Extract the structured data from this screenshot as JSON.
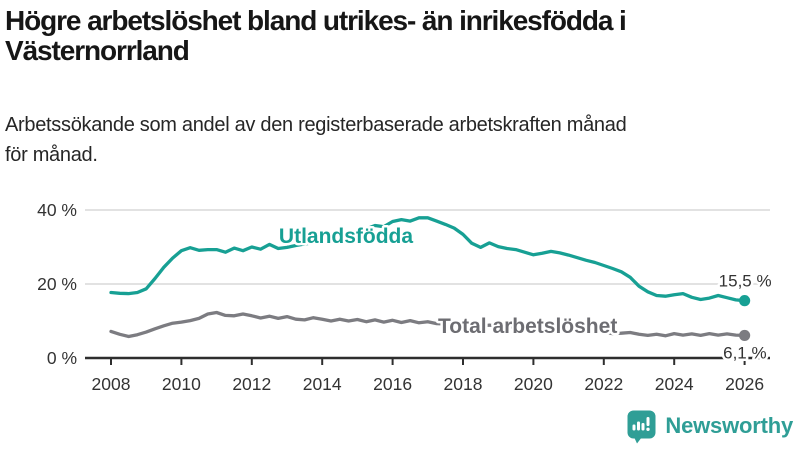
{
  "header": {
    "title": "Högre arbetslöshet bland utrikes- än inrikesfödda i Västernorrland",
    "title_line1": "Högre arbetslöshet bland utrikes- än inrikesfödda i",
    "title_line2": "Västernorrland",
    "subtitle": "Arbetssökande som andel av den registerbaserade arbetskraften månad för månad.",
    "subtitle_line1": "Arbetssökande som andel av den registerbaserade arbetskraften månad",
    "subtitle_line2": "för månad."
  },
  "chart_data": {
    "type": "line",
    "title": "Högre arbetslöshet bland utrikes- än inrikesfödda i Västernorrland",
    "subtitle": "Arbetssökande som andel av den registerbaserade arbetskraften månad för månad.",
    "unit": "%",
    "grid": "horizontal-only",
    "legend": "inline-series-labels",
    "x_axis": {
      "ticks": [
        {
          "value": 2008,
          "label": "2008"
        },
        {
          "value": 2010,
          "label": "2010"
        },
        {
          "value": 2012,
          "label": "2012"
        },
        {
          "value": 2014,
          "label": "2014"
        },
        {
          "value": 2016,
          "label": "2016"
        },
        {
          "value": 2018,
          "label": "2018"
        },
        {
          "value": 2020,
          "label": "2020"
        },
        {
          "value": 2022,
          "label": "2022"
        },
        {
          "value": 2024,
          "label": "2024"
        },
        {
          "value": 2026,
          "label": "2026"
        }
      ],
      "range": [
        2007.3,
        2026.7
      ]
    },
    "y_axis": {
      "ticks": [
        {
          "value": 0,
          "label": "0 %",
          "grid": false
        },
        {
          "value": 20,
          "label": "20 %",
          "grid": true
        },
        {
          "value": 40,
          "label": "40 %",
          "grid": true
        }
      ],
      "range": [
        0,
        43
      ]
    },
    "x_start": 2008.0,
    "x_step": 0.25,
    "series": [
      {
        "name": "Utlandsfödda",
        "color": "#17a094",
        "label_color": "#17a094",
        "end_label": "15,5 %",
        "last_value": 15.5,
        "values": [
          17.7,
          17.5,
          17.4,
          17.7,
          18.7,
          21.5,
          24.5,
          27.0,
          29.0,
          29.8,
          29.1,
          29.3,
          29.3,
          28.6,
          29.7,
          29.0,
          30.0,
          29.4,
          30.7,
          29.6,
          29.9,
          30.4,
          30.8,
          31.2,
          31.5,
          32.1,
          32.8,
          33.1,
          34.2,
          34.9,
          35.8,
          35.5,
          36.9,
          37.4,
          37.0,
          37.9,
          37.9,
          37.0,
          36.1,
          35.1,
          33.4,
          31.0,
          29.9,
          31.1,
          30.1,
          29.6,
          29.3,
          28.6,
          27.9,
          28.3,
          28.8,
          28.4,
          27.8,
          27.1,
          26.4,
          25.8,
          25.0,
          24.2,
          23.3,
          21.8,
          19.4,
          17.9,
          16.9,
          16.7,
          17.1,
          17.4,
          16.4,
          15.8,
          16.2,
          16.9,
          16.3,
          15.7,
          15.5
        ]
      },
      {
        "name": "Total arbetslöshet",
        "color": "#7c7c81",
        "label_color": "#6d6d72",
        "end_label": "6,1 %",
        "last_value": 6.1,
        "values": [
          7.2,
          6.4,
          5.8,
          6.3,
          7.0,
          7.9,
          8.7,
          9.4,
          9.7,
          10.1,
          10.7,
          11.9,
          12.3,
          11.5,
          11.4,
          11.9,
          11.4,
          10.8,
          11.3,
          10.7,
          11.2,
          10.5,
          10.3,
          10.9,
          10.5,
          10.0,
          10.5,
          10.0,
          10.4,
          9.8,
          10.3,
          9.7,
          10.2,
          9.6,
          10.1,
          9.5,
          9.8,
          9.3,
          9.2,
          9.0,
          9.2,
          8.8,
          8.6,
          8.9,
          8.6,
          8.3,
          8.5,
          8.8,
          9.3,
          9.6,
          9.5,
          9.1,
          8.7,
          8.2,
          7.8,
          7.3,
          7.0,
          6.6,
          6.7,
          6.9,
          6.4,
          6.1,
          6.4,
          6.0,
          6.6,
          6.2,
          6.5,
          6.1,
          6.6,
          6.2,
          6.5,
          6.2,
          6.1
        ]
      }
    ],
    "colors": {
      "grid": "#d9d9d9",
      "axis": "#2e2e2e",
      "tick_text": "#333333",
      "end_label_text": "#333333"
    }
  },
  "footer": {
    "brand": "Newsworthy",
    "brand_color": "#2f9e96",
    "logo_icon": "bar-chart-speech-bubble"
  }
}
